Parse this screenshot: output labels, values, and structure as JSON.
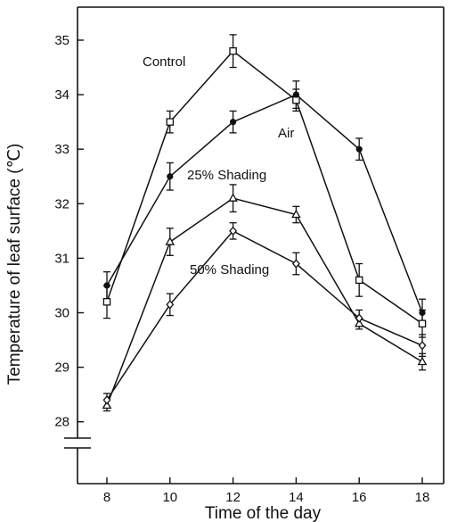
{
  "chart_data": {
    "type": "line",
    "title": "",
    "xlabel": "Time of the day",
    "ylabel": "Temperature of leaf surface (℃)",
    "x": [
      8,
      10,
      12,
      14,
      16,
      18
    ],
    "x_ticks": [
      "8",
      "10",
      "12",
      "14",
      "16",
      "18"
    ],
    "y_ticks": [
      "28",
      "29",
      "30",
      "31",
      "32",
      "33",
      "34",
      "35"
    ],
    "ylim": [
      27.7,
      35.4
    ],
    "y_axis_break": true,
    "grid": false,
    "series": [
      {
        "name": "Control",
        "marker": "open-square",
        "values": [
          30.2,
          33.5,
          34.8,
          33.9,
          30.6,
          29.8
        ],
        "errors": [
          0.3,
          0.2,
          0.3,
          0.2,
          0.3,
          0.25
        ]
      },
      {
        "name": "Air",
        "marker": "filled-circle",
        "values": [
          30.5,
          32.5,
          33.5,
          34.0,
          33.0,
          30.0
        ],
        "errors": [
          0.25,
          0.25,
          0.2,
          0.25,
          0.2,
          0.25
        ]
      },
      {
        "name": "25% Shading",
        "marker": "open-triangle",
        "values": [
          28.3,
          31.3,
          32.1,
          31.8,
          29.8,
          29.1
        ],
        "errors": [
          0.1,
          0.25,
          0.25,
          0.15,
          0.1,
          0.15
        ]
      },
      {
        "name": "50% Shading",
        "marker": "open-diamond",
        "values": [
          28.4,
          30.15,
          31.5,
          30.9,
          29.9,
          29.4
        ],
        "errors": [
          0.12,
          0.2,
          0.15,
          0.2,
          0.15,
          0.2
        ]
      }
    ]
  }
}
